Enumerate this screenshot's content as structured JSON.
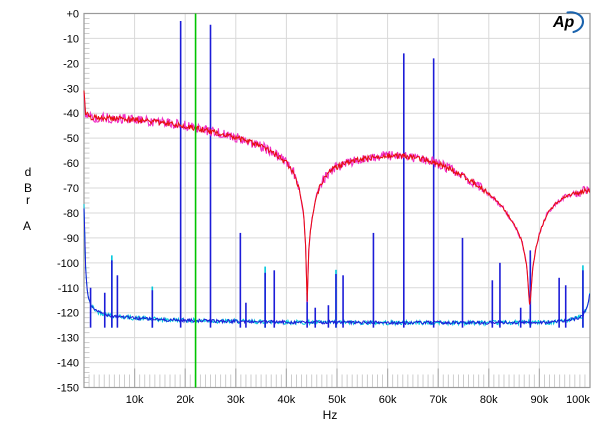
{
  "chart_data": {
    "type": "line",
    "title": "",
    "xlabel": "Hz",
    "ylabel_chars": [
      "d",
      "B",
      "r"
    ],
    "channel_label": "A",
    "logo_text": "Ap",
    "grid": true,
    "legend_position": "none",
    "x_axis": {
      "unit": "Hz",
      "scale": "linear",
      "min_khz": 0,
      "max_khz": 100,
      "major_tick_khz": 10,
      "minor_tick_khz": 1,
      "tick_labels": [
        "10k",
        "20k",
        "30k",
        "40k",
        "50k",
        "60k",
        "70k",
        "80k",
        "90k",
        "100k"
      ]
    },
    "y_axis": {
      "unit": "dBr",
      "scale": "linear",
      "min_db": -150,
      "max_db": 0,
      "major_tick_db": 10,
      "minor_tick_db": 2,
      "tick_labels": [
        "+0",
        "-10",
        "-20",
        "-30",
        "-40",
        "-50",
        "-60",
        "-70",
        "-80",
        "-90",
        "-100",
        "-110",
        "-120",
        "-130",
        "-140",
        "-150"
      ]
    },
    "marker_line": {
      "freq_khz": 22.05,
      "color": "#00c400"
    },
    "colors": {
      "spectrum_trace": "#e60d0d",
      "spectrum_fringe": "#f030c8",
      "floor_trace": "#1c1cd8",
      "floor_fringe": "#00c8dc",
      "marker": "#00c400",
      "grid": "#d9d9d9",
      "minor_tick": "#c8c8c8",
      "major_tick": "#b0b0b0",
      "border": "#9a9a9a",
      "logo_blue": "#1a63ad",
      "text": "#000000"
    },
    "traces": [
      {
        "name": "wideband-noise-spectrum",
        "color_key": "spectrum_trace",
        "fringe_key": "spectrum_fringe",
        "noise_db": 1.1,
        "fringe_noise_db": 2.0,
        "points_khz_db": [
          [
            0.05,
            -31
          ],
          [
            0.3,
            -40
          ],
          [
            1,
            -41.5
          ],
          [
            4,
            -41.9
          ],
          [
            8,
            -42.3
          ],
          [
            12,
            -43
          ],
          [
            16,
            -43.9
          ],
          [
            20,
            -45
          ],
          [
            24,
            -46.8
          ],
          [
            28,
            -48.7
          ],
          [
            31,
            -50.4
          ],
          [
            34,
            -52.4
          ],
          [
            36,
            -54.2
          ],
          [
            38,
            -56.6
          ],
          [
            40,
            -60
          ],
          [
            41.5,
            -64
          ],
          [
            42.5,
            -70
          ],
          [
            43.4,
            -80
          ],
          [
            43.8,
            -93
          ],
          [
            44.1,
            -116
          ],
          [
            44.45,
            -93
          ],
          [
            45,
            -83
          ],
          [
            45.8,
            -74
          ],
          [
            47,
            -67.5
          ],
          [
            48.5,
            -63.5
          ],
          [
            50,
            -61.5
          ],
          [
            52,
            -59.8
          ],
          [
            55,
            -58.2
          ],
          [
            58,
            -57.3
          ],
          [
            61,
            -57
          ],
          [
            63,
            -57.2
          ],
          [
            65,
            -57.7
          ],
          [
            67,
            -58.4
          ],
          [
            69,
            -59.5
          ],
          [
            71,
            -61
          ],
          [
            73,
            -63
          ],
          [
            75,
            -65.3
          ],
          [
            77,
            -68
          ],
          [
            79,
            -70.7
          ],
          [
            81,
            -74
          ],
          [
            83,
            -78.5
          ],
          [
            85,
            -84.5
          ],
          [
            86.5,
            -91
          ],
          [
            87.5,
            -101
          ],
          [
            88.1,
            -118
          ],
          [
            88.7,
            -102
          ],
          [
            89.4,
            -93
          ],
          [
            90.3,
            -86.5
          ],
          [
            91.5,
            -80.5
          ],
          [
            93,
            -76.5
          ],
          [
            95,
            -73.5
          ],
          [
            97,
            -72
          ],
          [
            99,
            -71.2
          ],
          [
            100,
            -71
          ]
        ]
      },
      {
        "name": "noise-floor",
        "color_key": "floor_trace",
        "fringe_key": "floor_fringe",
        "noise_db": 2.2,
        "fringe_noise_db": 3.0,
        "points_khz_db": [
          [
            0.05,
            -77
          ],
          [
            0.15,
            -90
          ],
          [
            0.35,
            -104
          ],
          [
            0.7,
            -112
          ],
          [
            1.2,
            -116.5
          ],
          [
            2.5,
            -119.5
          ],
          [
            5,
            -121
          ],
          [
            9,
            -122
          ],
          [
            15,
            -122.8
          ],
          [
            25,
            -123.3
          ],
          [
            40,
            -123.8
          ],
          [
            60,
            -124
          ],
          [
            80,
            -124
          ],
          [
            92,
            -123.8
          ],
          [
            96,
            -123
          ],
          [
            98.5,
            -121.5
          ],
          [
            99.6,
            -117
          ],
          [
            100,
            -112
          ]
        ]
      }
    ],
    "spikes": [
      {
        "name": "tone-and-aliased-images-ch1",
        "color_key": "floor_trace",
        "values_khz_db": [
          [
            1.3,
            -110
          ],
          [
            4.1,
            -112
          ],
          [
            5.5,
            -99
          ],
          [
            6.6,
            -105
          ],
          [
            13.5,
            -111
          ],
          [
            19.1,
            -3
          ],
          [
            25,
            -4.5
          ],
          [
            30.9,
            -88
          ],
          [
            32,
            -116
          ],
          [
            35.8,
            -104
          ],
          [
            37.6,
            -103
          ],
          [
            44.1,
            -112
          ],
          [
            45.7,
            -118
          ],
          [
            48.3,
            -117
          ],
          [
            49.8,
            -104.5
          ],
          [
            51.2,
            -105
          ],
          [
            57.2,
            -88
          ],
          [
            63.2,
            -16
          ],
          [
            69.1,
            -18
          ],
          [
            74.8,
            -90
          ],
          [
            80.7,
            -107
          ],
          [
            82.2,
            -100
          ],
          [
            86.3,
            -118
          ],
          [
            88.2,
            -95
          ],
          [
            93.9,
            -106
          ],
          [
            95.2,
            -109
          ],
          [
            98.6,
            -103
          ]
        ]
      },
      {
        "name": "tone-and-aliased-images-ch2",
        "color_key": "floor_fringe",
        "values_khz_db": [
          [
            5.5,
            -97
          ],
          [
            13.5,
            -109.5
          ],
          [
            35.8,
            -101.5
          ],
          [
            49.8,
            -102.8
          ],
          [
            88.2,
            -97
          ],
          [
            98.6,
            -101
          ]
        ]
      }
    ]
  }
}
